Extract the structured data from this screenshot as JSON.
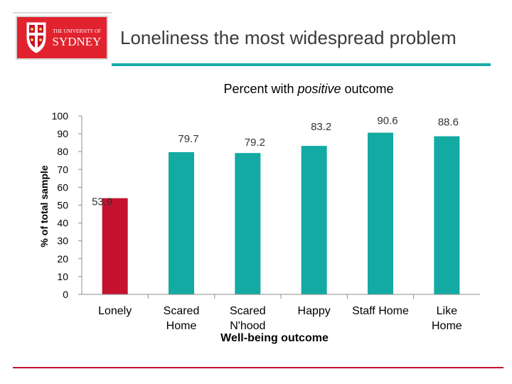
{
  "page": {
    "title": "Loneliness the most widespread problem",
    "logo_text_top": "THE UNIVERSITY OF",
    "logo_text_main": "SYDNEY"
  },
  "colors": {
    "accent": "#19aba8",
    "lonely_bar": "#c4122f",
    "teal_bar": "#12aaa3",
    "brand_red": "#e0232e"
  },
  "chart_data": {
    "type": "bar",
    "title": "Percent with positive outcome",
    "title_parts": [
      "Percent with ",
      "positive",
      " outcome"
    ],
    "xlabel": "Well-being outcome",
    "ylabel": "% of total sample",
    "ylim": [
      0,
      100
    ],
    "yticks": [
      0,
      10,
      20,
      30,
      40,
      50,
      60,
      70,
      80,
      90,
      100
    ],
    "categories": [
      "Lonely",
      "Scared Home",
      "Scared N'hood",
      "Happy",
      "Staff Home",
      "Like Home"
    ],
    "category_lines": [
      [
        "Lonely"
      ],
      [
        "Scared",
        "Home"
      ],
      [
        "Scared",
        "N'hood"
      ],
      [
        "Happy"
      ],
      [
        "Staff Home"
      ],
      [
        "Like",
        "Home"
      ]
    ],
    "values": [
      53.9,
      79.7,
      79.2,
      83.2,
      90.6,
      88.6
    ],
    "value_labels": [
      "53.9",
      "79.7",
      "79.2",
      "83.2",
      "90.6",
      "88.6"
    ],
    "bar_colors": [
      "#c4122f",
      "#12aaa3",
      "#12aaa3",
      "#12aaa3",
      "#12aaa3",
      "#12aaa3"
    ],
    "grid": false,
    "legend": "none"
  }
}
